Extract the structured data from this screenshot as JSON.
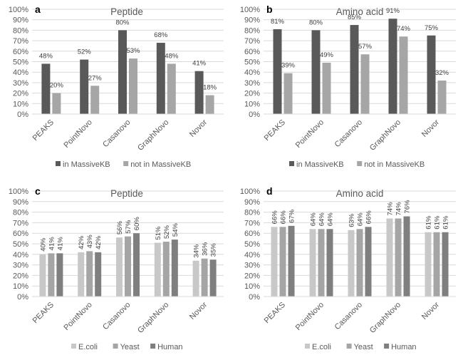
{
  "chart_data": [
    {
      "panel": "a",
      "type": "bar",
      "title": "Peptide",
      "categories": [
        "PEAKS",
        "PointNovo",
        "Casanovo",
        "GraphNovo",
        "Novor"
      ],
      "series": [
        {
          "name": "in MassiveKB",
          "color": "#595959",
          "values": [
            48,
            52,
            80,
            68,
            41
          ],
          "labels": [
            "48%",
            "52%",
            "80%",
            "68%",
            "41%"
          ]
        },
        {
          "name": "not in MassiveKB",
          "color": "#a6a6a6",
          "values": [
            20,
            27,
            53,
            48,
            18
          ],
          "labels": [
            "20%",
            "27%",
            "53%",
            "48%",
            "18%"
          ]
        }
      ],
      "ylim": [
        0,
        100
      ],
      "yticks": [
        "0%",
        "10%",
        "20%",
        "30%",
        "40%",
        "50%",
        "60%",
        "70%",
        "80%",
        "90%",
        "100%"
      ],
      "xlabel": "",
      "ylabel": "",
      "grid": true,
      "legend": "bottom",
      "label_orientation": "horizontal"
    },
    {
      "panel": "b",
      "type": "bar",
      "title": "Amino acid",
      "categories": [
        "PEAKS",
        "PointNovo",
        "Casanovo",
        "GraphNovo",
        "Novor"
      ],
      "series": [
        {
          "name": "in MassiveKB",
          "color": "#595959",
          "values": [
            81,
            80,
            85,
            91,
            75
          ],
          "labels": [
            "81%",
            "80%",
            "85%",
            "91%",
            "75%"
          ]
        },
        {
          "name": "not in MassiveKB",
          "color": "#a6a6a6",
          "values": [
            39,
            49,
            57,
            74,
            32
          ],
          "labels": [
            "39%",
            "49%",
            "57%",
            "74%",
            "32%"
          ]
        }
      ],
      "ylim": [
        0,
        100
      ],
      "yticks": [
        "0%",
        "10%",
        "20%",
        "30%",
        "40%",
        "50%",
        "60%",
        "70%",
        "80%",
        "90%",
        "100%"
      ],
      "xlabel": "",
      "ylabel": "",
      "grid": true,
      "legend": "bottom",
      "label_orientation": "horizontal"
    },
    {
      "panel": "c",
      "type": "bar",
      "title": "Peptide",
      "categories": [
        "PEAKS",
        "PointNovo",
        "Casanovo",
        "GraphNovo",
        "Novor"
      ],
      "series": [
        {
          "name": "E.coli",
          "color": "#c8c8c8",
          "values": [
            40,
            42,
            56,
            51,
            34
          ],
          "labels": [
            "40%",
            "42%",
            "56%",
            "51%",
            "34%"
          ]
        },
        {
          "name": "Yeast",
          "color": "#a5a5a5",
          "values": [
            41,
            43,
            57,
            52,
            36
          ],
          "labels": [
            "41%",
            "43%",
            "57%",
            "52%",
            "36%"
          ]
        },
        {
          "name": "Human",
          "color": "#7f7f7f",
          "values": [
            41,
            42,
            60,
            54,
            35
          ],
          "labels": [
            "41%",
            "42%",
            "60%",
            "54%",
            "35%"
          ]
        }
      ],
      "ylim": [
        0,
        100
      ],
      "yticks": [
        "0%",
        "10%",
        "20%",
        "30%",
        "40%",
        "50%",
        "60%",
        "70%",
        "80%",
        "90%",
        "100%"
      ],
      "xlabel": "",
      "ylabel": "",
      "grid": true,
      "legend": "bottom",
      "label_orientation": "vertical"
    },
    {
      "panel": "d",
      "type": "bar",
      "title": "Amino acid",
      "categories": [
        "PEAKS",
        "PointNovo",
        "Casanovo",
        "GraphNovo",
        "Novor"
      ],
      "series": [
        {
          "name": "E.coli",
          "color": "#c8c8c8",
          "values": [
            66,
            64,
            63,
            74,
            61
          ],
          "labels": [
            "66%",
            "64%",
            "63%",
            "74%",
            "61%"
          ]
        },
        {
          "name": "Yeast",
          "color": "#a5a5a5",
          "values": [
            66,
            64,
            64,
            74,
            61
          ],
          "labels": [
            "66%",
            "64%",
            "64%",
            "74%",
            "61%"
          ]
        },
        {
          "name": "Human",
          "color": "#7f7f7f",
          "values": [
            67,
            64,
            66,
            76,
            61
          ],
          "labels": [
            "67%",
            "64%",
            "66%",
            "76%",
            "61%"
          ]
        }
      ],
      "ylim": [
        0,
        100
      ],
      "yticks": [
        "0%",
        "10%",
        "20%",
        "30%",
        "40%",
        "50%",
        "60%",
        "70%",
        "80%",
        "90%",
        "100%"
      ],
      "xlabel": "",
      "ylabel": "",
      "grid": true,
      "legend": "bottom",
      "label_orientation": "vertical"
    }
  ]
}
